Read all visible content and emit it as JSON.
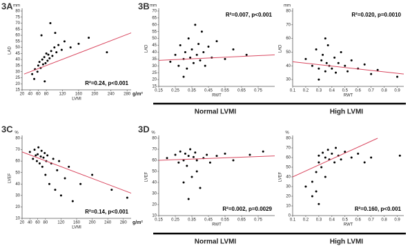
{
  "panels": [
    "3A",
    "3B",
    "3C",
    "3D"
  ],
  "groups": [
    "Normal LVMI",
    "High LVMI"
  ],
  "chart_data": [
    {
      "type": "scatter",
      "y_label": "LAD",
      "y_unit": "mm",
      "x_label": "LVMI",
      "x_unit": "g/m²",
      "annotation": "R²=0.24, p<0.001",
      "xlim": [
        20,
        290
      ],
      "ylim": [
        15,
        80
      ],
      "xticks": [
        20,
        40,
        60,
        80,
        120,
        160,
        200,
        240,
        280
      ],
      "yticks": [
        15,
        20,
        25,
        30,
        35,
        40,
        45,
        50,
        55,
        60,
        65,
        70,
        75,
        80
      ],
      "color": "#000000",
      "x": [
        45,
        52,
        58,
        60,
        63,
        66,
        70,
        72,
        75,
        78,
        80,
        83,
        85,
        88,
        92,
        95,
        100,
        105,
        110,
        118,
        125,
        140,
        160,
        185,
        230,
        50,
        68,
        90,
        102,
        76
      ],
      "y": [
        28,
        32,
        30,
        35,
        38,
        33,
        40,
        36,
        42,
        37,
        45,
        39,
        44,
        41,
        47,
        43,
        50,
        46,
        52,
        48,
        55,
        50,
        53,
        58,
        46,
        24,
        60,
        70,
        62,
        22
      ],
      "fit": {
        "color": "#d9475f",
        "x": [
          25,
          290
        ],
        "y": [
          28,
          62
        ]
      }
    },
    {
      "type": "scatter",
      "y_label": "LAD",
      "y_unit": "mm",
      "x_label": "RWT",
      "annotation": "R²=0.007, p<0.001",
      "xlim": [
        0.15,
        0.85
      ],
      "ylim": [
        15,
        70
      ],
      "xticks": [
        0.15,
        0.25,
        0.35,
        0.45,
        0.55,
        0.65,
        0.75
      ],
      "yticks": [
        15,
        20,
        25,
        30,
        35,
        40,
        45,
        50,
        55,
        60,
        65,
        70
      ],
      "color": "#000000",
      "x": [
        0.22,
        0.25,
        0.27,
        0.28,
        0.3,
        0.31,
        0.32,
        0.33,
        0.34,
        0.35,
        0.36,
        0.37,
        0.38,
        0.39,
        0.4,
        0.41,
        0.42,
        0.43,
        0.45,
        0.47,
        0.5,
        0.55,
        0.6,
        0.68,
        0.3
      ],
      "y": [
        33,
        38,
        30,
        45,
        35,
        40,
        28,
        50,
        36,
        42,
        32,
        60,
        38,
        46,
        34,
        55,
        40,
        30,
        44,
        36,
        48,
        35,
        42,
        38,
        22
      ],
      "fit": {
        "color": "#d9475f",
        "x": [
          0.15,
          0.85
        ],
        "y": [
          34,
          38
        ]
      }
    },
    {
      "type": "scatter",
      "y_label": "LAD",
      "y_unit": "mm",
      "x_label": "RWT",
      "annotation": "R²=0.020, p=0.0010",
      "xlim": [
        0.1,
        0.95
      ],
      "ylim": [
        25,
        80
      ],
      "xticks": [
        0.1,
        0.2,
        0.3,
        0.4,
        0.5,
        0.6,
        0.7,
        0.8,
        0.9
      ],
      "yticks": [
        30,
        40,
        50,
        60,
        70,
        80
      ],
      "color": "#000000",
      "x": [
        0.2,
        0.25,
        0.28,
        0.3,
        0.32,
        0.33,
        0.35,
        0.36,
        0.37,
        0.38,
        0.4,
        0.42,
        0.43,
        0.45,
        0.47,
        0.5,
        0.52,
        0.55,
        0.6,
        0.65,
        0.7,
        0.75,
        0.35,
        0.3,
        0.9
      ],
      "y": [
        45,
        40,
        52,
        38,
        44,
        48,
        36,
        42,
        55,
        40,
        38,
        46,
        35,
        42,
        50,
        40,
        36,
        44,
        38,
        41,
        34,
        37,
        60,
        30,
        32
      ],
      "fit": {
        "color": "#d9475f",
        "x": [
          0.1,
          0.95
        ],
        "y": [
          43,
          34
        ]
      }
    },
    {
      "type": "scatter",
      "y_label": "LVEF",
      "y_unit": "%",
      "x_label": "LVMI",
      "x_unit": "g/m²",
      "annotation": "R²=0.14, p<0.001",
      "xlim": [
        20,
        300
      ],
      "ylim": [
        10,
        80
      ],
      "xticks": [
        20,
        40,
        60,
        80,
        120,
        160,
        200,
        240,
        280
      ],
      "yticks": [
        10,
        20,
        30,
        40,
        50,
        60,
        70,
        80
      ],
      "color": "#000000",
      "x": [
        40,
        48,
        52,
        55,
        58,
        60,
        62,
        65,
        68,
        70,
        72,
        75,
        78,
        80,
        82,
        85,
        90,
        95,
        100,
        105,
        110,
        115,
        120,
        130,
        140,
        150,
        170,
        200,
        250,
        290
      ],
      "y": [
        68,
        62,
        70,
        65,
        60,
        66,
        72,
        58,
        64,
        69,
        55,
        63,
        67,
        48,
        60,
        65,
        40,
        58,
        62,
        35,
        52,
        60,
        30,
        45,
        55,
        25,
        40,
        48,
        35,
        28
      ],
      "fit": {
        "color": "#d9475f",
        "x": [
          20,
          300
        ],
        "y": [
          68,
          32
        ]
      }
    },
    {
      "type": "scatter",
      "y_label": "LVEF",
      "y_unit": "%",
      "x_label": "RWT",
      "annotation": "R²=0.002, p=0.0029",
      "xlim": [
        0.15,
        0.85
      ],
      "ylim": [
        10,
        80
      ],
      "xticks": [
        0.15,
        0.25,
        0.35,
        0.45,
        0.55,
        0.65,
        0.75
      ],
      "yticks": [
        10,
        20,
        30,
        40,
        50,
        60,
        70,
        80
      ],
      "color": "#000000",
      "x": [
        0.2,
        0.25,
        0.27,
        0.28,
        0.3,
        0.31,
        0.32,
        0.33,
        0.34,
        0.35,
        0.36,
        0.37,
        0.38,
        0.4,
        0.42,
        0.44,
        0.46,
        0.5,
        0.55,
        0.6,
        0.7,
        0.78,
        0.33,
        0.3,
        0.38
      ],
      "y": [
        62,
        65,
        58,
        68,
        60,
        66,
        55,
        64,
        70,
        45,
        63,
        67,
        60,
        35,
        62,
        65,
        58,
        64,
        66,
        60,
        65,
        68,
        25,
        40,
        50
      ],
      "fit": {
        "color": "#d9475f",
        "x": [
          0.15,
          0.85
        ],
        "y": [
          60,
          64
        ]
      }
    },
    {
      "type": "scatter",
      "y_label": "LVEF",
      "y_unit": "%",
      "x_label": "RWT",
      "annotation": "R²=0.160, p<0.001",
      "xlim": [
        0.1,
        0.95
      ],
      "ylim": [
        0,
        80
      ],
      "xticks": [
        0.1,
        0.2,
        0.3,
        0.4,
        0.5,
        0.6,
        0.7,
        0.8,
        0.9
      ],
      "yticks": [
        0,
        10,
        20,
        30,
        40,
        50,
        60,
        70,
        80
      ],
      "color": "#000000",
      "x": [
        0.2,
        0.25,
        0.28,
        0.3,
        0.3,
        0.32,
        0.33,
        0.35,
        0.35,
        0.37,
        0.38,
        0.4,
        0.42,
        0.43,
        0.45,
        0.47,
        0.5,
        0.55,
        0.6,
        0.65,
        0.7,
        0.3,
        0.28,
        0.25,
        0.92
      ],
      "y": [
        30,
        20,
        45,
        55,
        62,
        50,
        65,
        60,
        40,
        68,
        58,
        64,
        55,
        70,
        62,
        58,
        66,
        60,
        64,
        55,
        60,
        12,
        25,
        35,
        62
      ],
      "fit": {
        "color": "#d9475f",
        "x": [
          0.1,
          0.75
        ],
        "y": [
          40,
          80
        ]
      }
    }
  ]
}
